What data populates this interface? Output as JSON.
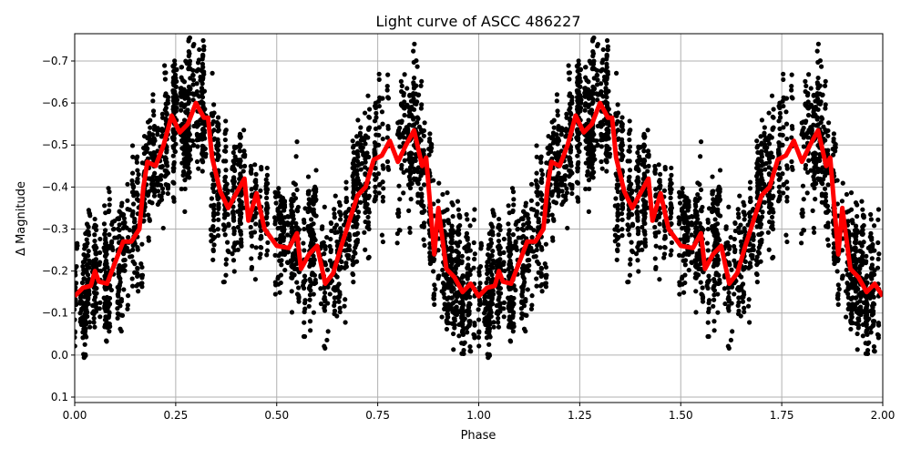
{
  "chart_data": {
    "type": "scatter",
    "title": "Light curve of ASCC 486227",
    "xlabel": "Phase",
    "ylabel": "Δ Magnitude",
    "xlim": [
      0,
      2
    ],
    "ylim": [
      0.113,
      -0.765
    ],
    "y_inverted": true,
    "grid": true,
    "x_ticks": [
      "0.00",
      "0.25",
      "0.50",
      "0.75",
      "1.00",
      "1.25",
      "1.50",
      "1.75",
      "2.00"
    ],
    "x_tick_values": [
      0,
      0.25,
      0.5,
      0.75,
      1.0,
      1.25,
      1.5,
      1.75,
      2.0
    ],
    "y_ticks": [
      "−0.7",
      "−0.6",
      "−0.5",
      "−0.4",
      "−0.3",
      "−0.2",
      "−0.1",
      "0.0",
      "0.1"
    ],
    "y_tick_values": [
      -0.7,
      -0.6,
      -0.5,
      -0.4,
      -0.3,
      -0.2,
      -0.1,
      0.0,
      0.1
    ],
    "colors": {
      "points": "#000000",
      "trend": "#ff0000",
      "grid": "#b0b0b0"
    },
    "series": [
      {
        "kind": "trend-line",
        "x": [
          0.0,
          0.02,
          0.04,
          0.05,
          0.06,
          0.08,
          0.1,
          0.12,
          0.14,
          0.16,
          0.17,
          0.18,
          0.2,
          0.22,
          0.24,
          0.26,
          0.28,
          0.3,
          0.32,
          0.33,
          0.34,
          0.36,
          0.38,
          0.4,
          0.42,
          0.43,
          0.45,
          0.47,
          0.5,
          0.53,
          0.55,
          0.56,
          0.58,
          0.6,
          0.62,
          0.64,
          0.66,
          0.68,
          0.7,
          0.72,
          0.74,
          0.76,
          0.78,
          0.8,
          0.82,
          0.84,
          0.86,
          0.87,
          0.89,
          0.9,
          0.92,
          0.94,
          0.96,
          0.98,
          1.0,
          1.02,
          1.04,
          1.05,
          1.06,
          1.08,
          1.1,
          1.12,
          1.14,
          1.16,
          1.17,
          1.18,
          1.2,
          1.22,
          1.24,
          1.26,
          1.28,
          1.3,
          1.32,
          1.33,
          1.34,
          1.36,
          1.38,
          1.4,
          1.42,
          1.43,
          1.45,
          1.47,
          1.5,
          1.53,
          1.55,
          1.56,
          1.58,
          1.6,
          1.62,
          1.64,
          1.66,
          1.68,
          1.7,
          1.72,
          1.74,
          1.76,
          1.78,
          1.8,
          1.82,
          1.84,
          1.86,
          1.87,
          1.89,
          1.9,
          1.92,
          1.94,
          1.96,
          1.98,
          2.0
        ],
        "y": [
          -0.14,
          -0.16,
          -0.165,
          -0.2,
          -0.175,
          -0.17,
          -0.22,
          -0.27,
          -0.27,
          -0.3,
          -0.4,
          -0.46,
          -0.45,
          -0.5,
          -0.57,
          -0.53,
          -0.55,
          -0.6,
          -0.565,
          -0.565,
          -0.47,
          -0.39,
          -0.35,
          -0.385,
          -0.42,
          -0.32,
          -0.385,
          -0.3,
          -0.26,
          -0.255,
          -0.29,
          -0.205,
          -0.24,
          -0.26,
          -0.17,
          -0.195,
          -0.26,
          -0.32,
          -0.38,
          -0.4,
          -0.465,
          -0.475,
          -0.51,
          -0.46,
          -0.5,
          -0.535,
          -0.45,
          -0.47,
          -0.24,
          -0.35,
          -0.205,
          -0.185,
          -0.15,
          -0.17,
          -0.14,
          -0.16,
          -0.165,
          -0.2,
          -0.175,
          -0.17,
          -0.22,
          -0.27,
          -0.27,
          -0.3,
          -0.4,
          -0.46,
          -0.45,
          -0.5,
          -0.57,
          -0.53,
          -0.55,
          -0.6,
          -0.565,
          -0.565,
          -0.47,
          -0.39,
          -0.35,
          -0.385,
          -0.42,
          -0.32,
          -0.385,
          -0.3,
          -0.26,
          -0.255,
          -0.29,
          -0.205,
          -0.24,
          -0.26,
          -0.17,
          -0.195,
          -0.26,
          -0.32,
          -0.38,
          -0.4,
          -0.465,
          -0.475,
          -0.51,
          -0.46,
          -0.5,
          -0.535,
          -0.45,
          -0.47,
          -0.24,
          -0.35,
          -0.205,
          -0.185,
          -0.15,
          -0.17,
          -0.14
        ]
      }
    ]
  }
}
